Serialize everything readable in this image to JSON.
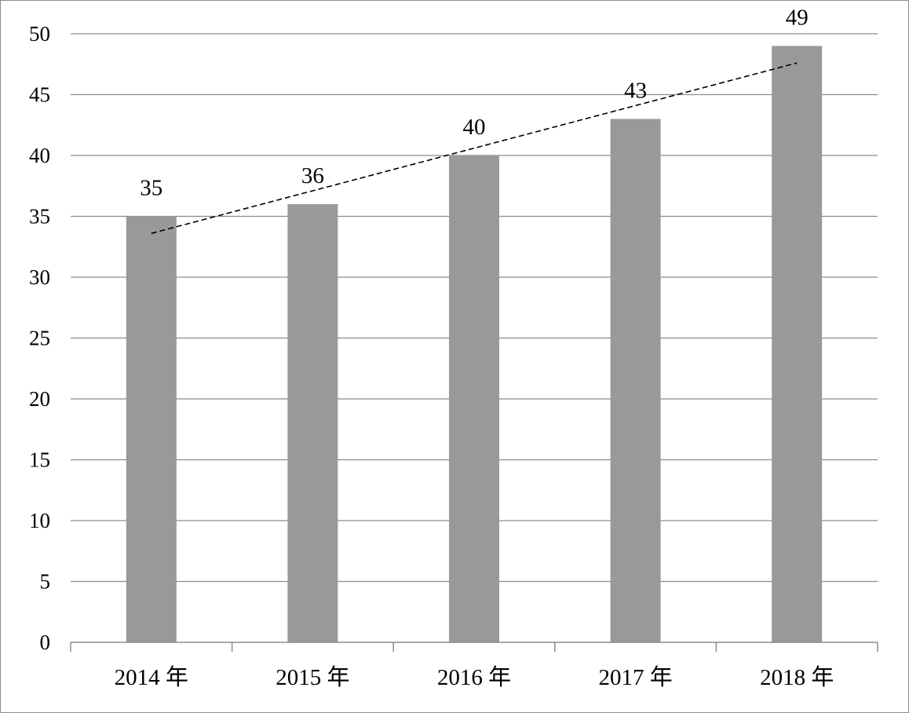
{
  "chart_data": {
    "type": "bar",
    "title": "",
    "xlabel": "",
    "ylabel": "",
    "categories": [
      "2014 年",
      "2015 年",
      "2016 年",
      "2017 年",
      "2018 年"
    ],
    "values": [
      35,
      36,
      40,
      43,
      49
    ],
    "data_labels": [
      "35",
      "36",
      "40",
      "43",
      "49"
    ],
    "ylim": [
      0,
      50
    ],
    "yticks": [
      "0",
      "5",
      "10",
      "15",
      "20",
      "25",
      "30",
      "35",
      "40",
      "45",
      "50"
    ],
    "grid": true,
    "legend": "none",
    "trendline": {
      "type": "linear",
      "style": "dashed"
    },
    "colors": {
      "bar": "#999999",
      "grid": "#8c8c8c",
      "axis": "#8c8c8c",
      "trendline": "#000000",
      "text": "#000000"
    }
  }
}
